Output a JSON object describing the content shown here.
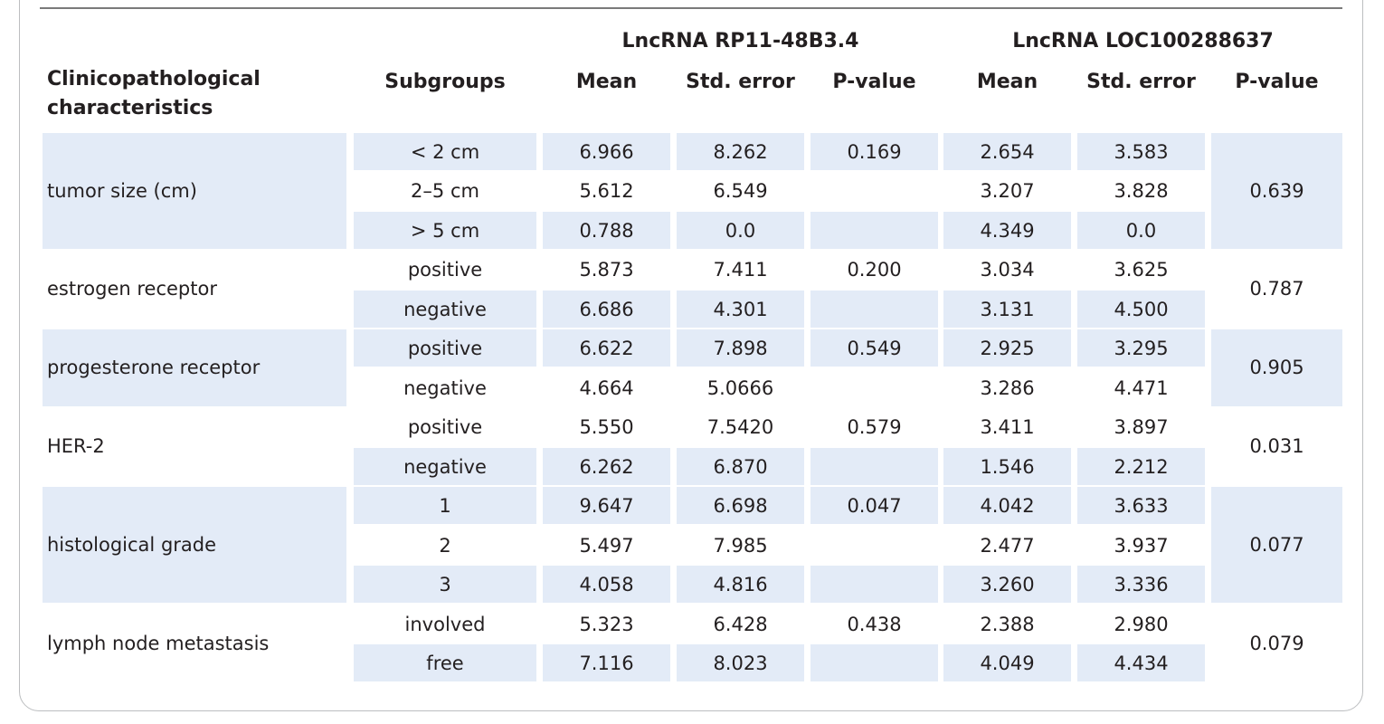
{
  "table": {
    "group_headers": {
      "lnc1": "LncRNA RP11-48B3.4",
      "lnc2": "LncRNA LOC100288637"
    },
    "col_headers": {
      "characteristic": "Clinicopathological\ncharacteristics",
      "subgroup": "Subgroups",
      "mean1": "Mean",
      "se1": "Std. error",
      "p1": "P-value",
      "mean2": "Mean",
      "se2": "Std. error",
      "p2": "P-value"
    },
    "groups": [
      {
        "label": "tumor size (cm)",
        "shaded": true,
        "p1": "0.169",
        "p2": "0.639",
        "rows": [
          {
            "sub": "< 2 cm",
            "m1": "6.966",
            "s1": "8.262",
            "m2": "2.654",
            "s2": "3.583"
          },
          {
            "sub": "2–5 cm",
            "m1": "5.612",
            "s1": "6.549",
            "m2": "3.207",
            "s2": "3.828"
          },
          {
            "sub": "> 5 cm",
            "m1": "0.788",
            "s1": "0.0",
            "m2": "4.349",
            "s2": "0.0"
          }
        ]
      },
      {
        "label": "estrogen receptor",
        "shaded": false,
        "p1": "0.200",
        "p2": "0.787",
        "rows": [
          {
            "sub": "positive",
            "m1": "5.873",
            "s1": "7.411",
            "m2": "3.034",
            "s2": "3.625"
          },
          {
            "sub": "negative",
            "m1": "6.686",
            "s1": "4.301",
            "m2": "3.131",
            "s2": "4.500"
          }
        ]
      },
      {
        "label": "progesterone receptor",
        "shaded": true,
        "p1": "0.549",
        "p2": "0.905",
        "rows": [
          {
            "sub": "positive",
            "m1": "6.622",
            "s1": "7.898",
            "m2": "2.925",
            "s2": "3.295"
          },
          {
            "sub": "negative",
            "m1": "4.664",
            "s1": "5.0666",
            "m2": "3.286",
            "s2": "4.471"
          }
        ]
      },
      {
        "label": "HER-2",
        "shaded": false,
        "p1": "0.579",
        "p2": "0.031",
        "rows": [
          {
            "sub": "positive",
            "m1": "5.550",
            "s1": "7.5420",
            "m2": "3.411",
            "s2": "3.897"
          },
          {
            "sub": "negative",
            "m1": "6.262",
            "s1": "6.870",
            "m2": "1.546",
            "s2": "2.212"
          }
        ]
      },
      {
        "label": "histological grade",
        "shaded": true,
        "p1": "0.047",
        "p2": "0.077",
        "rows": [
          {
            "sub": "1",
            "m1": "9.647",
            "s1": "6.698",
            "m2": "4.042",
            "s2": "3.633"
          },
          {
            "sub": "2",
            "m1": "5.497",
            "s1": "7.985",
            "m2": "2.477",
            "s2": "3.937"
          },
          {
            "sub": "3",
            "m1": "4.058",
            "s1": "4.816",
            "m2": "3.260",
            "s2": "3.336"
          }
        ]
      },
      {
        "label": "lymph node metastasis",
        "shaded": false,
        "p1": "0.438",
        "p2": "0.079",
        "rows": [
          {
            "sub": "involved",
            "m1": "5.323",
            "s1": "6.428",
            "m2": "2.388",
            "s2": "2.980"
          },
          {
            "sub": "free",
            "m1": "7.116",
            "s1": "8.023",
            "m2": "4.049",
            "s2": "4.434"
          }
        ]
      }
    ]
  }
}
